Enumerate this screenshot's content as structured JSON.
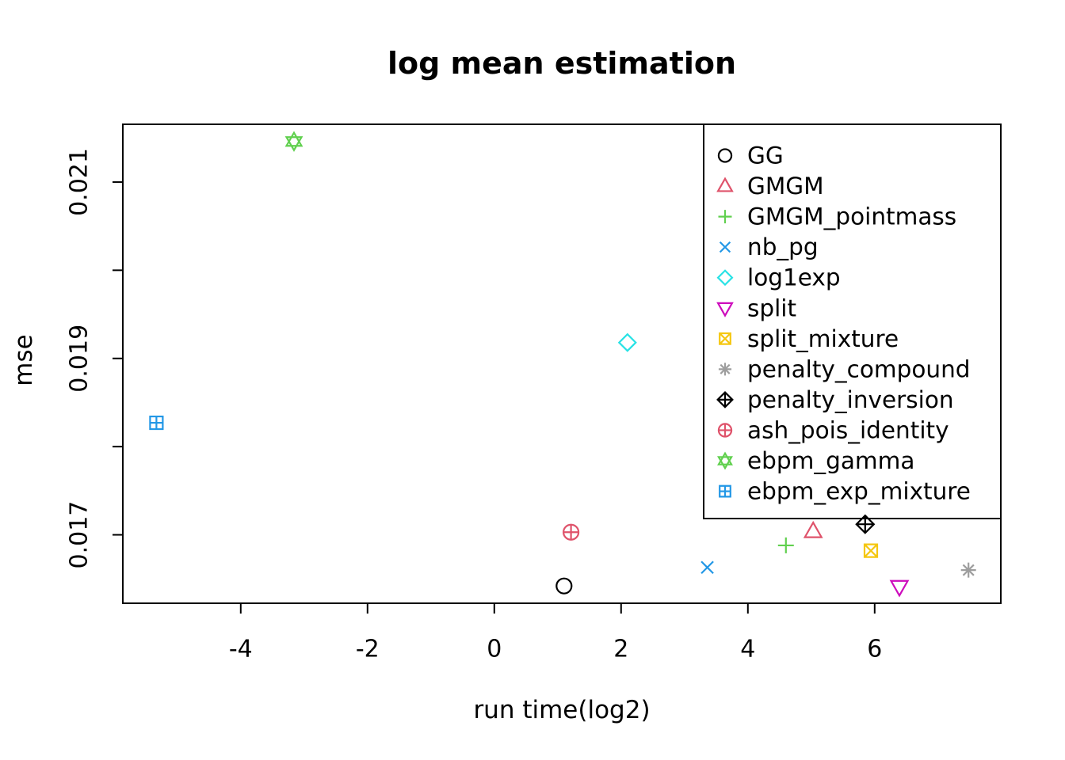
{
  "chart_data": {
    "type": "scatter",
    "title": "log mean estimation",
    "xlabel": "run time(log2)",
    "ylabel": "mse",
    "grid": false,
    "legend_position": "top-right-inside",
    "xlim": [
      -5.86,
      7.99
    ],
    "ylim": [
      0.016224,
      0.021655
    ],
    "x_ticks": [
      -4,
      -2,
      0,
      2,
      4,
      6
    ],
    "x_tick_labels": [
      "-4",
      "-2",
      "0",
      "2",
      "4",
      "6"
    ],
    "y_ticks": [
      0.017,
      0.018,
      0.019,
      0.02,
      0.021
    ],
    "y_tick_labels": [
      "0.017",
      "",
      "0.019",
      "",
      "0.021"
    ],
    "series": [
      {
        "name": "GG",
        "marker": "circle",
        "color": "#000000",
        "x": 1.1,
        "y": 0.01642
      },
      {
        "name": "GMGM",
        "marker": "triangle-up",
        "color": "#DF536B",
        "x": 5.03,
        "y": 0.01704
      },
      {
        "name": "GMGM_pointmass",
        "marker": "plus",
        "color": "#61D04F",
        "x": 4.6,
        "y": 0.01688
      },
      {
        "name": "nb_pg",
        "marker": "x",
        "color": "#2297E6",
        "x": 3.36,
        "y": 0.01663
      },
      {
        "name": "log1exp",
        "marker": "diamond",
        "color": "#28E2E5",
        "x": 2.1,
        "y": 0.01918
      },
      {
        "name": "split",
        "marker": "triangle-down",
        "color": "#CD0BBC",
        "x": 6.39,
        "y": 0.01641
      },
      {
        "name": "split_mixture",
        "marker": "square-x",
        "color": "#F5C710",
        "x": 5.94,
        "y": 0.01682
      },
      {
        "name": "penalty_compound",
        "marker": "asterisk",
        "color": "#9E9E9E",
        "x": 7.48,
        "y": 0.0166
      },
      {
        "name": "penalty_inversion",
        "marker": "diamond-plus",
        "color": "#000000",
        "x": 5.85,
        "y": 0.01712
      },
      {
        "name": "ash_pois_identity",
        "marker": "circle-plus",
        "color": "#DF536B",
        "x": 1.21,
        "y": 0.01703
      },
      {
        "name": "ebpm_gamma",
        "marker": "star-of-david",
        "color": "#61D04F",
        "x": -3.16,
        "y": 0.02146
      },
      {
        "name": "ebpm_exp_mixture",
        "marker": "square-plus",
        "color": "#2297E6",
        "x": -5.33,
        "y": 0.01827
      }
    ],
    "axis_color": "#000000",
    "background_color": "#ffffff"
  }
}
